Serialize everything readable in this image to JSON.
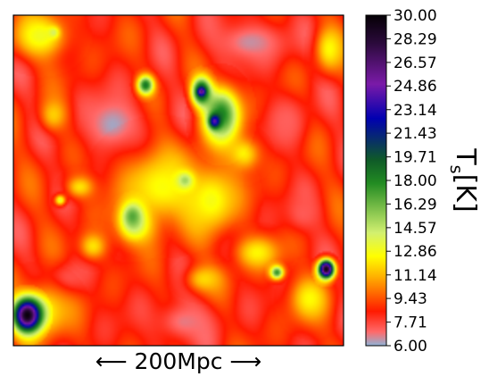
{
  "chart_data": {
    "type": "heatmap",
    "title": "",
    "xlabel": "⟵ 200Mpc ⟶",
    "colorbar": {
      "label_main": "T",
      "label_sub": "s",
      "label_unit": "[K]",
      "range": [
        6.0,
        30.0
      ],
      "ticks": [
        "30.00",
        "28.29",
        "26.57",
        "24.86",
        "23.14",
        "21.43",
        "19.71",
        "18.00",
        "16.29",
        "14.57",
        "12.86",
        "11.14",
        "9.43",
        "7.71",
        "6.00"
      ],
      "colormap": [
        {
          "v": 6.0,
          "color": "#8fb4d8"
        },
        {
          "v": 7.0,
          "color": "#ff6a6a"
        },
        {
          "v": 8.5,
          "color": "#ff1a00"
        },
        {
          "v": 11.0,
          "color": "#ffb000"
        },
        {
          "v": 12.5,
          "color": "#ffff00"
        },
        {
          "v": 14.2,
          "color": "#d2f070"
        },
        {
          "v": 17.8,
          "color": "#228b22"
        },
        {
          "v": 19.5,
          "color": "#0f5a28"
        },
        {
          "v": 22.5,
          "color": "#0000b0"
        },
        {
          "v": 25.0,
          "color": "#7a1aa8"
        },
        {
          "v": 28.0,
          "color": "#2a0a3a"
        },
        {
          "v": 30.0,
          "color": "#050005"
        }
      ]
    },
    "field": {
      "background_level": 8.6,
      "features": [
        {
          "kind": "cool",
          "cx": 0.3,
          "cy": 0.33,
          "rx": 0.11,
          "ry": 0.11,
          "v": 6.2
        },
        {
          "kind": "cool",
          "cx": 0.72,
          "cy": 0.08,
          "rx": 0.14,
          "ry": 0.08,
          "v": 6.5
        },
        {
          "kind": "cool",
          "cx": 0.52,
          "cy": 0.93,
          "rx": 0.12,
          "ry": 0.08,
          "v": 6.8
        },
        {
          "kind": "cool",
          "cx": 0.83,
          "cy": 0.32,
          "rx": 0.08,
          "ry": 0.1,
          "v": 7.2
        },
        {
          "kind": "cool",
          "cx": 0.88,
          "cy": 0.6,
          "rx": 0.07,
          "ry": 0.07,
          "v": 7.3
        },
        {
          "kind": "cool",
          "cx": 0.16,
          "cy": 0.8,
          "rx": 0.08,
          "ry": 0.06,
          "v": 7.2
        },
        {
          "kind": "warm",
          "cx": 0.08,
          "cy": 0.06,
          "rx": 0.1,
          "ry": 0.08,
          "v": 13.0
        },
        {
          "kind": "warm",
          "cx": 0.45,
          "cy": 0.52,
          "rx": 0.16,
          "ry": 0.14,
          "v": 12.6
        },
        {
          "kind": "warm",
          "cx": 0.6,
          "cy": 0.56,
          "rx": 0.1,
          "ry": 0.12,
          "v": 12.8
        },
        {
          "kind": "warm",
          "cx": 0.37,
          "cy": 0.64,
          "rx": 0.07,
          "ry": 0.07,
          "v": 13.2
        },
        {
          "kind": "warm",
          "cx": 0.2,
          "cy": 0.52,
          "rx": 0.05,
          "ry": 0.04,
          "v": 12.0
        },
        {
          "kind": "warm",
          "cx": 0.74,
          "cy": 0.72,
          "rx": 0.08,
          "ry": 0.06,
          "v": 12.4
        },
        {
          "kind": "warm",
          "cx": 0.9,
          "cy": 0.86,
          "rx": 0.07,
          "ry": 0.08,
          "v": 12.5
        },
        {
          "kind": "warm",
          "cx": 0.08,
          "cy": 0.9,
          "rx": 0.1,
          "ry": 0.1,
          "v": 13.0
        },
        {
          "kind": "warm",
          "cx": 0.96,
          "cy": 0.1,
          "rx": 0.05,
          "ry": 0.08,
          "v": 12.5
        },
        {
          "kind": "warm",
          "cx": 0.7,
          "cy": 0.42,
          "rx": 0.06,
          "ry": 0.06,
          "v": 12.2
        },
        {
          "kind": "warm",
          "cx": 0.24,
          "cy": 0.7,
          "rx": 0.05,
          "ry": 0.05,
          "v": 12.0
        },
        {
          "kind": "warm",
          "cx": 0.12,
          "cy": 0.3,
          "rx": 0.05,
          "ry": 0.06,
          "v": 11.6
        },
        {
          "kind": "warm",
          "cx": 0.58,
          "cy": 0.8,
          "rx": 0.07,
          "ry": 0.05,
          "v": 11.8
        },
        {
          "kind": "hot",
          "cx": 0.63,
          "cy": 0.3,
          "rx": 0.07,
          "ry": 0.1,
          "v": 18.2
        },
        {
          "kind": "hot",
          "cx": 0.57,
          "cy": 0.23,
          "rx": 0.035,
          "ry": 0.05,
          "v": 21.5
        },
        {
          "kind": "hot",
          "cx": 0.61,
          "cy": 0.32,
          "rx": 0.02,
          "ry": 0.025,
          "v": 24.5
        },
        {
          "kind": "hot",
          "cx": 0.57,
          "cy": 0.23,
          "rx": 0.012,
          "ry": 0.012,
          "v": 26.5
        },
        {
          "kind": "hot",
          "cx": 0.4,
          "cy": 0.21,
          "rx": 0.03,
          "ry": 0.035,
          "v": 18.6
        },
        {
          "kind": "hot",
          "cx": 0.36,
          "cy": 0.61,
          "rx": 0.04,
          "ry": 0.05,
          "v": 16.8
        },
        {
          "kind": "hot",
          "cx": 0.52,
          "cy": 0.5,
          "rx": 0.03,
          "ry": 0.03,
          "v": 15.2
        },
        {
          "kind": "hot",
          "cx": 0.8,
          "cy": 0.78,
          "rx": 0.025,
          "ry": 0.025,
          "v": 17.5
        },
        {
          "kind": "hot",
          "cx": 0.95,
          "cy": 0.77,
          "rx": 0.03,
          "ry": 0.035,
          "v": 29.5
        },
        {
          "kind": "hot",
          "cx": 0.04,
          "cy": 0.91,
          "rx": 0.05,
          "ry": 0.06,
          "v": 29.8
        },
        {
          "kind": "hot",
          "cx": 0.14,
          "cy": 0.56,
          "rx": 0.02,
          "ry": 0.02,
          "v": 13.4
        },
        {
          "kind": "hot",
          "cx": 0.12,
          "cy": 0.05,
          "rx": 0.02,
          "ry": 0.02,
          "v": 14.0
        }
      ]
    }
  }
}
